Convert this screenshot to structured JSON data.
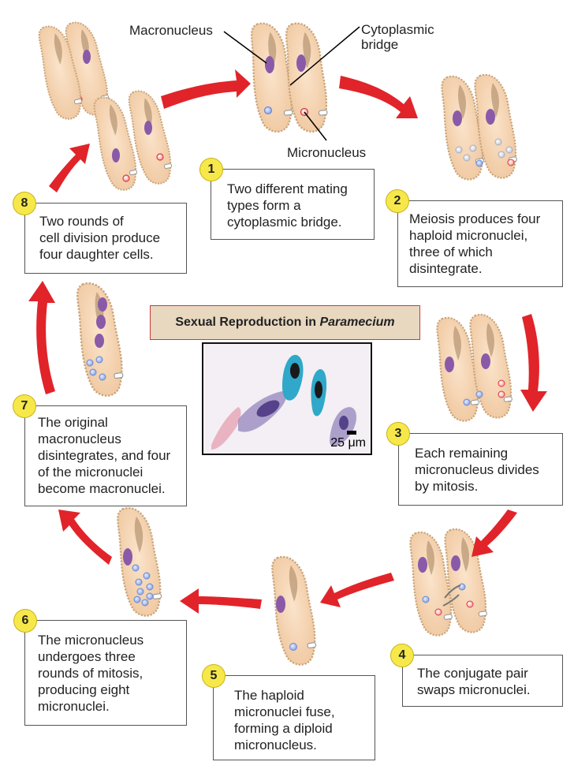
{
  "title": {
    "prefix": "Sexual Reproduction in ",
    "italic": "Paramecium"
  },
  "labels": {
    "macronucleus": "Macronucleus",
    "cytoplasmic_bridge": "Cytoplasmic\nbridge",
    "micronucleus": "Micronucleus"
  },
  "scale_label": "25 μm",
  "steps": [
    {
      "number": "1",
      "text": "Two different mating\ntypes form a\ncytoplasmic bridge."
    },
    {
      "number": "2",
      "text": "Meiosis produces four\nhaploid micronuclei,\nthree of which\ndisintegrate."
    },
    {
      "number": "3",
      "text": "Each remaining\nmicronucleus divides\nby mitosis."
    },
    {
      "number": "4",
      "text": "The conjugate pair\nswaps micronuclei."
    },
    {
      "number": "5",
      "text": "The haploid\nmicronuclei fuse,\nforming a diploid\nmicronucleus."
    },
    {
      "number": "6",
      "text": "The micronucleus\nundergoes three\nrounds of mitosis,\nproducing eight\nmicronuclei."
    },
    {
      "number": "7",
      "text": "The original\nmacronucleus\ndisintegrates, and four\nof the micronuclei\nbecome macronuclei."
    },
    {
      "number": "8",
      "text": "Two rounds of\ncell division produce\nfour daughter cells."
    }
  ],
  "colors": {
    "cell_fill": "#f6d6b5",
    "cell_outline": "#c9a57a",
    "macronucleus": "#8a5aa8",
    "micronucleus_red": "#e33a3a",
    "micronucleus_blue": "#6b8bd6",
    "micronucleus_gray": "#c3c7d6",
    "arrow": "#e0242a",
    "badge": "#f7e84a"
  }
}
